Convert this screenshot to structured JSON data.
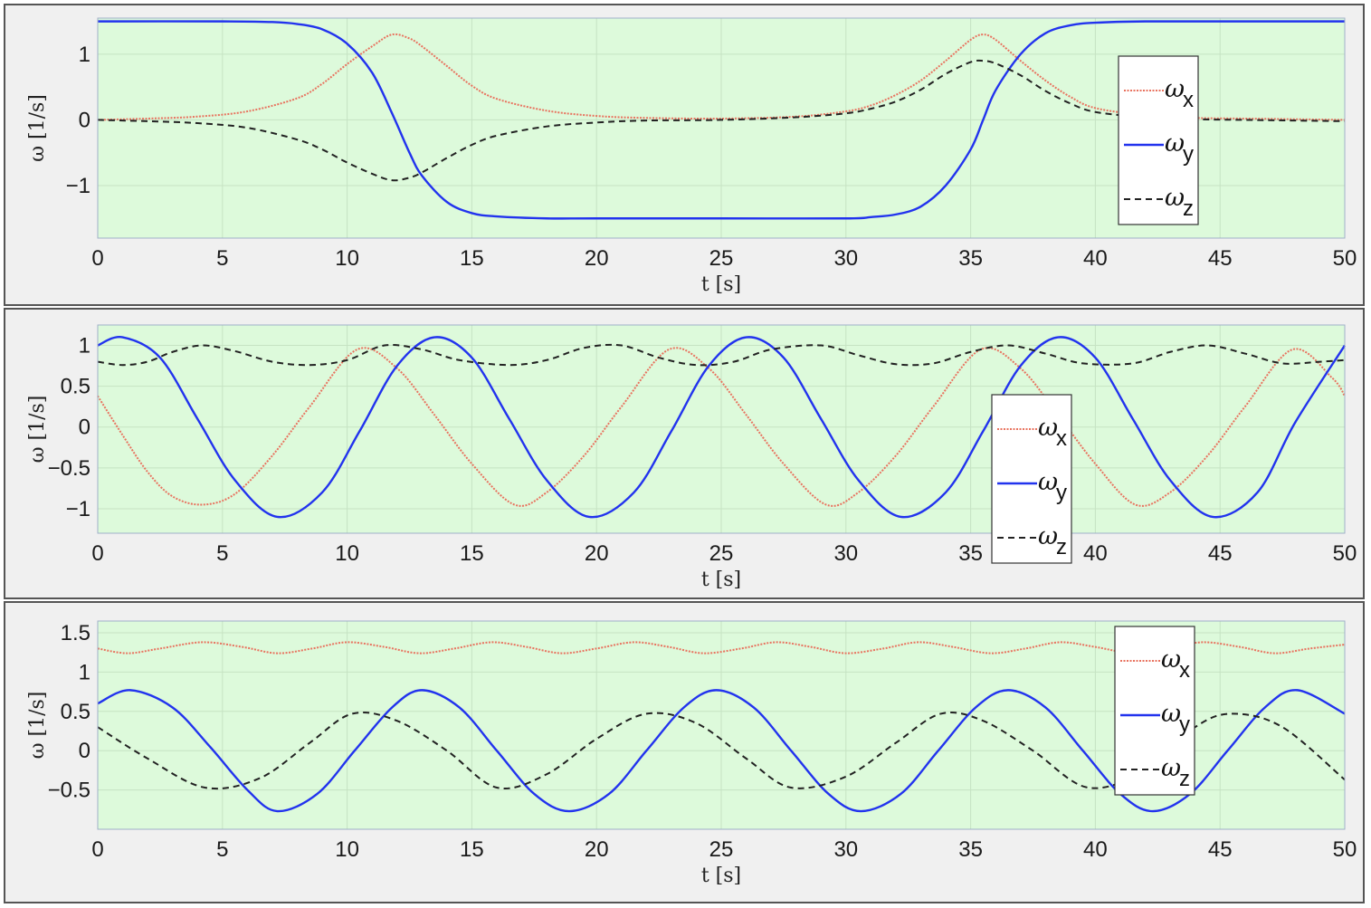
{
  "colors": {
    "plot_bg": "#ddfadb",
    "panel_bg": "#f0f0f0",
    "grid": "#c6e3c3",
    "wx": "#e8735f",
    "wy": "#2233ee",
    "wz": "#222222"
  },
  "chart_data": [
    {
      "type": "line",
      "xlabel": "t [s]",
      "ylabel": "ω [1/s]",
      "xlim": [
        0,
        50
      ],
      "ylim": [
        -1.8,
        1.55
      ],
      "xticks": [
        0,
        5,
        10,
        15,
        20,
        25,
        30,
        35,
        40,
        45,
        50
      ],
      "xtick_labels": [
        "0",
        "5",
        "10",
        "15",
        "20",
        "25",
        "30",
        "35",
        "40",
        "45",
        "50"
      ],
      "yticks": [
        -1,
        0,
        1
      ],
      "ytick_labels": [
        "−1",
        "0",
        "1"
      ],
      "grid": true,
      "legend": "top-right",
      "series": [
        {
          "name": "ωx",
          "symbol": "ω",
          "sub": "x",
          "style": "dotted",
          "color": "#e8735f",
          "x": [
            0,
            2,
            4,
            6,
            8,
            9,
            10,
            11,
            11.8,
            12.5,
            13,
            14,
            15,
            16,
            18,
            20,
            22,
            25,
            28,
            30,
            31,
            32,
            33,
            34,
            35,
            35.5,
            36,
            37,
            38,
            39,
            40,
            42,
            44,
            46,
            48,
            50
          ],
          "y": [
            0,
            0.02,
            0.05,
            0.13,
            0.33,
            0.55,
            0.85,
            1.12,
            1.3,
            1.24,
            1.12,
            0.82,
            0.52,
            0.32,
            0.14,
            0.06,
            0.03,
            0.02,
            0.05,
            0.13,
            0.22,
            0.38,
            0.6,
            0.9,
            1.22,
            1.3,
            1.22,
            0.9,
            0.6,
            0.35,
            0.18,
            0.07,
            0.03,
            0.02,
            0.01,
            0.0
          ]
        },
        {
          "name": "ωy",
          "symbol": "ω",
          "sub": "y",
          "style": "solid",
          "color": "#2233ee",
          "x": [
            0,
            5,
            7,
            8,
            9,
            10,
            11,
            11.8,
            12.5,
            13,
            14,
            15,
            16,
            18,
            20,
            25,
            30,
            31,
            32,
            33,
            34,
            35,
            35.5,
            36,
            37,
            38,
            39,
            40,
            42,
            45,
            50
          ],
          "y": [
            1.5,
            1.5,
            1.49,
            1.46,
            1.38,
            1.16,
            0.72,
            0.1,
            -0.5,
            -0.85,
            -1.25,
            -1.42,
            -1.47,
            -1.5,
            -1.5,
            -1.5,
            -1.5,
            -1.48,
            -1.44,
            -1.32,
            -1.0,
            -0.45,
            0.0,
            0.45,
            1.0,
            1.32,
            1.44,
            1.48,
            1.5,
            1.5,
            1.5
          ]
        },
        {
          "name": "ωz",
          "symbol": "ω",
          "sub": "z",
          "style": "dashed",
          "color": "#222222",
          "x": [
            0,
            2,
            4,
            6,
            8,
            9,
            10,
            11,
            11.8,
            12.5,
            13,
            14,
            15,
            16,
            18,
            20,
            22,
            25,
            28,
            30,
            31,
            32,
            33,
            34,
            35,
            35.5,
            36,
            37,
            38,
            39,
            40,
            42,
            44,
            46,
            48,
            50
          ],
          "y": [
            0,
            -0.02,
            -0.05,
            -0.12,
            -0.3,
            -0.45,
            -0.65,
            -0.82,
            -0.92,
            -0.88,
            -0.8,
            -0.58,
            -0.38,
            -0.24,
            -0.1,
            -0.04,
            -0.01,
            0.0,
            0.04,
            0.1,
            0.17,
            0.28,
            0.46,
            0.7,
            0.88,
            0.9,
            0.86,
            0.68,
            0.44,
            0.25,
            0.12,
            0.04,
            0.01,
            0.0,
            -0.01,
            -0.02
          ]
        }
      ]
    },
    {
      "type": "line",
      "xlabel": "t [s]",
      "ylabel": "ω [1/s]",
      "xlim": [
        0,
        50
      ],
      "ylim": [
        -1.3,
        1.25
      ],
      "xticks": [
        0,
        5,
        10,
        15,
        20,
        25,
        30,
        35,
        40,
        45,
        50
      ],
      "xtick_labels": [
        "0",
        "5",
        "10",
        "15",
        "20",
        "25",
        "30",
        "35",
        "40",
        "45",
        "50"
      ],
      "yticks": [
        -1,
        -0.5,
        0,
        0.5,
        1
      ],
      "ytick_labels": [
        "−1",
        "−0.5",
        "0",
        "0.5",
        "1"
      ],
      "grid": true,
      "legend": "center-right",
      "series": [
        {
          "name": "ωx",
          "symbol": "ω",
          "sub": "x",
          "style": "dotted",
          "color": "#e8735f",
          "x": [
            0,
            1.0,
            2.0,
            3.0,
            4.2,
            5.5,
            7.0,
            8.5,
            10.4,
            12.0,
            13.5,
            15.0,
            16.7,
            18.0,
            19.5,
            21.0,
            22.9,
            24.5,
            26.0,
            27.5,
            29.2,
            30.5,
            32.0,
            33.5,
            35.4,
            37.0,
            38.5,
            40.0,
            41.6,
            43.0,
            44.5,
            46.0,
            47.9,
            49.5,
            50
          ],
          "y": [
            0.38,
            -0.1,
            -0.55,
            -0.85,
            -0.95,
            -0.82,
            -0.35,
            0.25,
            0.95,
            0.72,
            0.15,
            -0.45,
            -0.95,
            -0.8,
            -0.35,
            0.25,
            0.95,
            0.72,
            0.15,
            -0.45,
            -0.95,
            -0.8,
            -0.35,
            0.25,
            0.95,
            0.72,
            0.15,
            -0.45,
            -0.95,
            -0.8,
            -0.35,
            0.25,
            0.95,
            0.6,
            0.38
          ]
        },
        {
          "name": "ωy",
          "symbol": "ω",
          "sub": "y",
          "style": "solid",
          "color": "#2233ee",
          "x": [
            0,
            1.0,
            2.5,
            4.0,
            5.5,
            7.2,
            9.0,
            10.5,
            12.0,
            13.5,
            15.0,
            16.5,
            18.0,
            19.7,
            21.5,
            23.0,
            24.5,
            26.0,
            27.5,
            29.0,
            30.5,
            32.2,
            34.0,
            35.5,
            37.0,
            38.5,
            40.0,
            41.5,
            43.0,
            44.7,
            46.5,
            48.0,
            50
          ],
          "y": [
            1.0,
            1.1,
            0.85,
            0.1,
            -0.65,
            -1.1,
            -0.8,
            -0.05,
            0.75,
            1.1,
            0.85,
            0.1,
            -0.65,
            -1.1,
            -0.8,
            -0.05,
            0.75,
            1.1,
            0.85,
            0.1,
            -0.65,
            -1.1,
            -0.8,
            -0.05,
            0.75,
            1.1,
            0.85,
            0.1,
            -0.65,
            -1.1,
            -0.8,
            0.05,
            1.0
          ]
        },
        {
          "name": "ωz",
          "symbol": "ω",
          "sub": "z",
          "style": "dashed",
          "color": "#222222",
          "x": [
            0,
            1.0,
            2.0,
            3.0,
            4.2,
            5.5,
            7.0,
            8.5,
            10.0,
            11.5,
            13.0,
            14.5,
            16.5,
            18.0,
            19.5,
            21.0,
            22.5,
            24.0,
            25.5,
            27.0,
            29.0,
            30.5,
            32.0,
            33.5,
            35.0,
            36.5,
            38.0,
            39.5,
            41.5,
            43.0,
            44.5,
            46.0,
            47.5,
            49.0,
            50
          ],
          "y": [
            0.8,
            0.76,
            0.8,
            0.92,
            1.0,
            0.93,
            0.8,
            0.76,
            0.82,
            1.0,
            0.95,
            0.82,
            0.76,
            0.82,
            0.97,
            1.0,
            0.85,
            0.76,
            0.8,
            0.95,
            1.0,
            0.88,
            0.77,
            0.78,
            0.92,
            1.0,
            0.9,
            0.78,
            0.78,
            0.92,
            1.0,
            0.9,
            0.78,
            0.8,
            0.82
          ]
        }
      ]
    },
    {
      "type": "line",
      "xlabel": "t [s]",
      "ylabel": "ω [1/s]",
      "xlim": [
        0,
        50
      ],
      "ylim": [
        -1.0,
        1.65
      ],
      "xticks": [
        0,
        5,
        10,
        15,
        20,
        25,
        30,
        35,
        40,
        45,
        50
      ],
      "xtick_labels": [
        "0",
        "5",
        "10",
        "15",
        "20",
        "25",
        "30",
        "35",
        "40",
        "45",
        "50"
      ],
      "yticks": [
        -0.5,
        0,
        0.5,
        1,
        1.5
      ],
      "ytick_labels": [
        "−0.5",
        "0",
        "0.5",
        "1",
        "1.5"
      ],
      "grid": true,
      "legend": "top-right",
      "series": [
        {
          "name": "ωx",
          "symbol": "ω",
          "sub": "x",
          "style": "dotted",
          "color": "#e8735f",
          "x": [
            0,
            1.2,
            2.5,
            4.2,
            5.8,
            7.2,
            8.6,
            10.0,
            11.5,
            12.9,
            14.3,
            15.8,
            17.2,
            18.6,
            20.0,
            21.5,
            22.9,
            24.3,
            25.8,
            27.2,
            28.6,
            30.0,
            31.5,
            32.9,
            34.3,
            35.8,
            37.2,
            38.6,
            40.0,
            41.5,
            42.9,
            44.3,
            45.8,
            47.2,
            48.6,
            50
          ],
          "y": [
            1.3,
            1.24,
            1.3,
            1.38,
            1.32,
            1.24,
            1.3,
            1.38,
            1.32,
            1.24,
            1.3,
            1.38,
            1.32,
            1.24,
            1.3,
            1.38,
            1.32,
            1.24,
            1.3,
            1.38,
            1.32,
            1.24,
            1.3,
            1.38,
            1.32,
            1.24,
            1.3,
            1.38,
            1.32,
            1.24,
            1.3,
            1.38,
            1.32,
            1.24,
            1.3,
            1.35
          ]
        },
        {
          "name": "ωy",
          "symbol": "ω",
          "sub": "y",
          "style": "solid",
          "color": "#2233ee",
          "x": [
            0,
            1.3,
            3.0,
            4.5,
            6.0,
            7.2,
            8.8,
            10.3,
            11.8,
            13.0,
            14.5,
            16.0,
            17.5,
            18.9,
            20.5,
            22.0,
            23.5,
            24.8,
            26.3,
            27.8,
            29.3,
            30.6,
            32.2,
            33.7,
            35.2,
            36.5,
            38.0,
            39.5,
            41.0,
            42.3,
            43.8,
            45.3,
            46.8,
            48.1,
            50
          ],
          "y": [
            0.6,
            0.77,
            0.55,
            0.05,
            -0.5,
            -0.77,
            -0.55,
            0.0,
            0.55,
            0.77,
            0.55,
            0.0,
            -0.55,
            -0.77,
            -0.55,
            0.0,
            0.55,
            0.77,
            0.55,
            0.0,
            -0.55,
            -0.77,
            -0.55,
            0.0,
            0.55,
            0.77,
            0.55,
            0.0,
            -0.55,
            -0.77,
            -0.55,
            0.0,
            0.55,
            0.77,
            0.47
          ]
        },
        {
          "name": "ωz",
          "symbol": "ω",
          "sub": "z",
          "style": "dashed",
          "color": "#222222",
          "x": [
            0,
            2.0,
            4.3,
            6.5,
            8.5,
            10.2,
            12.0,
            14.0,
            16.0,
            18.0,
            20.0,
            22.0,
            24.0,
            26.0,
            27.8,
            30.0,
            32.0,
            33.8,
            35.5,
            37.5,
            39.7,
            42.0,
            44.0,
            45.5,
            47.5,
            50
          ],
          "y": [
            0.3,
            -0.1,
            -0.47,
            -0.35,
            0.1,
            0.47,
            0.38,
            0.0,
            -0.47,
            -0.3,
            0.15,
            0.47,
            0.35,
            -0.1,
            -0.47,
            -0.33,
            0.1,
            0.47,
            0.38,
            0.0,
            -0.47,
            -0.25,
            0.3,
            0.47,
            0.3,
            -0.37
          ]
        }
      ]
    }
  ]
}
